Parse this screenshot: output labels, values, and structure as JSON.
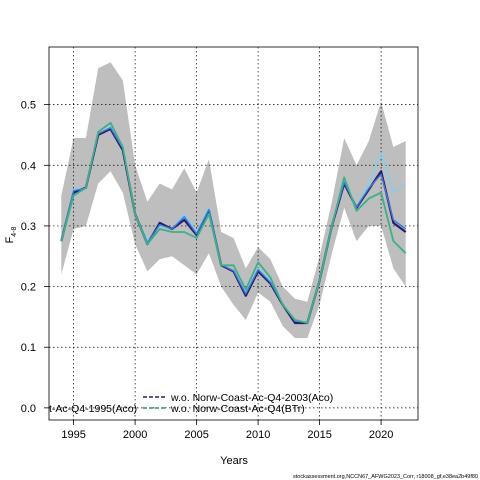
{
  "chart_data": {
    "type": "line",
    "xlabel": "Years",
    "ylabel": "F",
    "ylabel_sub": "4-8",
    "xlim": [
      1993,
      2023
    ],
    "ylim": [
      -0.02,
      0.595
    ],
    "x_ticks": [
      1995,
      2000,
      2005,
      2010,
      2015,
      2020
    ],
    "y_ticks": [
      0.0,
      0.1,
      0.2,
      0.3,
      0.4,
      0.5
    ],
    "y_tick_labels": [
      "0.0",
      "0.1",
      "0.2",
      "0.3",
      "0.4",
      "0.5"
    ],
    "grid": true,
    "x": [
      1994,
      1995,
      1996,
      1997,
      1998,
      1999,
      2000,
      2001,
      2002,
      2003,
      2004,
      2005,
      2006,
      2007,
      2008,
      2009,
      2010,
      2011,
      2012,
      2013,
      2014,
      2015,
      2016,
      2017,
      2018,
      2019,
      2020,
      2021,
      2022
    ],
    "band": {
      "color": "#bebebe",
      "upper": [
        0.35,
        0.445,
        0.445,
        0.56,
        0.57,
        0.54,
        0.4,
        0.34,
        0.37,
        0.36,
        0.395,
        0.355,
        0.41,
        0.29,
        0.28,
        0.23,
        0.265,
        0.245,
        0.2,
        0.18,
        0.175,
        0.25,
        0.34,
        0.445,
        0.4,
        0.44,
        0.505,
        0.43,
        0.44
      ],
      "lower": [
        0.22,
        0.295,
        0.3,
        0.37,
        0.39,
        0.355,
        0.27,
        0.225,
        0.245,
        0.25,
        0.235,
        0.22,
        0.255,
        0.2,
        0.17,
        0.145,
        0.19,
        0.175,
        0.135,
        0.115,
        0.115,
        0.17,
        0.255,
        0.33,
        0.275,
        0.3,
        0.3,
        0.23,
        0.2
      ]
    },
    "series": [
      {
        "color": "#87ceeb",
        "width": 1.6,
        "values": [
          0.275,
          0.36,
          0.363,
          0.45,
          0.465,
          0.432,
          0.32,
          0.275,
          0.3,
          0.295,
          0.32,
          0.29,
          0.33,
          0.235,
          0.225,
          0.19,
          0.23,
          0.21,
          0.17,
          0.145,
          0.14,
          0.21,
          0.3,
          0.375,
          0.33,
          0.37,
          0.42,
          0.355,
          0.37
        ]
      },
      {
        "color": "#2a1a6e",
        "width": 2.2,
        "values": [
          0.275,
          0.355,
          0.363,
          0.45,
          0.46,
          0.425,
          0.32,
          0.27,
          0.305,
          0.295,
          0.31,
          0.285,
          0.325,
          0.235,
          0.225,
          0.185,
          0.225,
          0.205,
          0.17,
          0.14,
          0.14,
          0.21,
          0.3,
          0.37,
          0.33,
          0.36,
          0.39,
          0.305,
          0.29
        ]
      },
      {
        "color": "#3a7bd5",
        "width": 1.4,
        "values": [
          0.275,
          0.358,
          0.362,
          0.452,
          0.462,
          0.428,
          0.32,
          0.272,
          0.302,
          0.295,
          0.315,
          0.287,
          0.327,
          0.236,
          0.226,
          0.188,
          0.228,
          0.207,
          0.171,
          0.143,
          0.141,
          0.211,
          0.301,
          0.372,
          0.331,
          0.362,
          0.385,
          0.31,
          0.295
        ]
      },
      {
        "color": "#3cb08a",
        "width": 1.8,
        "values": [
          0.275,
          0.35,
          0.363,
          0.455,
          0.47,
          0.43,
          0.32,
          0.27,
          0.295,
          0.29,
          0.29,
          0.28,
          0.32,
          0.235,
          0.235,
          0.195,
          0.24,
          0.215,
          0.17,
          0.145,
          0.14,
          0.21,
          0.3,
          0.38,
          0.325,
          0.345,
          0.355,
          0.275,
          0.255
        ]
      }
    ],
    "legend": {
      "placement": "bottom",
      "entries": [
        {
          "label": "t-Ac-Q4-1995(Aco)",
          "line_color": null,
          "dash": null
        },
        {
          "label": "w.o. Norw-Coast-Ac-Q4-2003(Aco)",
          "line_color": "#2a1a6e",
          "dash": "dashed"
        },
        {
          "label": "w.o. Norw-Coast-Ac-Q4(BTr)",
          "line_color": "#2f8f6f",
          "dash": "dashed"
        }
      ]
    },
    "footnote": "stockassessment.org,NCCN67_AFWG2023_Corr, r18008_gf,e38ea2b49f80"
  }
}
